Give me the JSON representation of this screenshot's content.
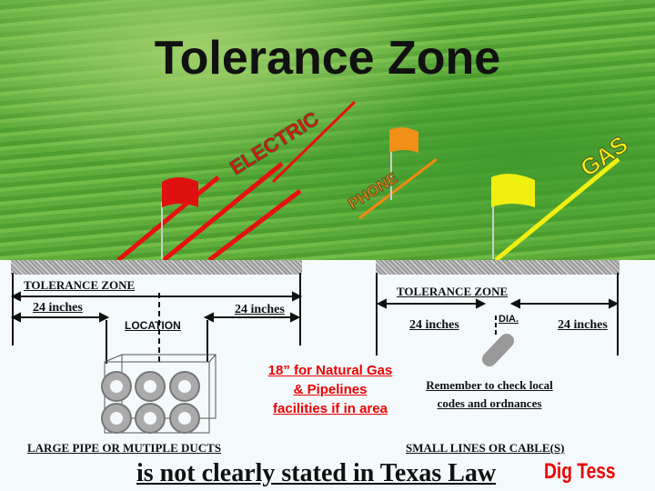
{
  "title": "Tolerance Zone",
  "utilities": {
    "electric": "ELECTRIC",
    "phone": "PHONE",
    "gas": "GAS"
  },
  "colors": {
    "electric": "#e81010",
    "phone": "#f08a10",
    "gas": "#f0f010",
    "note": "#e00000"
  },
  "left_diagram": {
    "zone_label": "TOLERANCE ZONE",
    "left_width": "24 inches",
    "right_width": "24 inches",
    "location": "LOCATION",
    "caption": "LARGE PIPE OR MUTIPLE DUCTS"
  },
  "right_diagram": {
    "zone_label": "TOLERANCE ZONE",
    "left_width": "24 inches",
    "right_width": "24 inches",
    "dia": "DIA.",
    "caption": "SMALL LINES OR CABLE(S)"
  },
  "gas_note": [
    "18” for Natural Gas",
    "& Pipelines",
    "facilities if in area"
  ],
  "reminder": [
    "Remember to check local",
    "codes and ordnances"
  ],
  "footer": "is not clearly stated in Texas Law",
  "logo": "Dig Tess"
}
